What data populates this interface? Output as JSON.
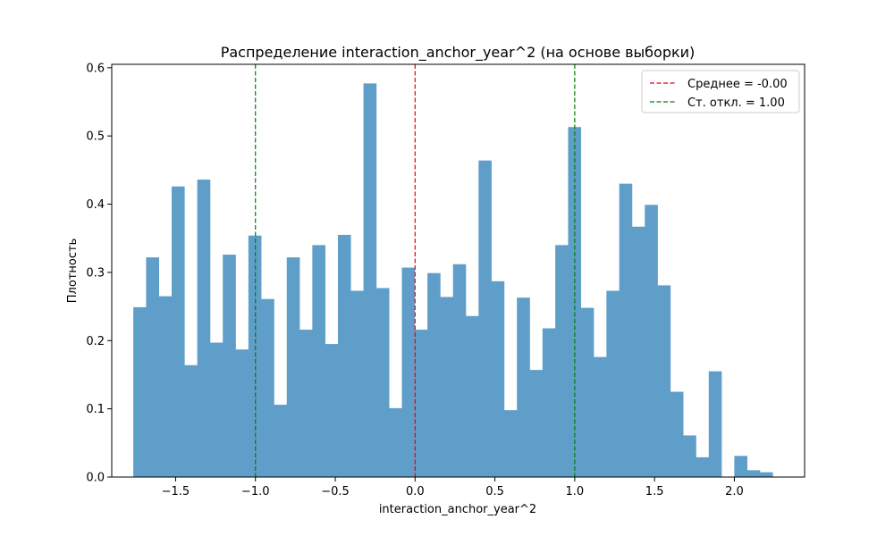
{
  "chart_data": {
    "type": "bar",
    "title": "Распределение interaction_anchor_year^2 (на основе выборки)",
    "xlabel": "interaction_anchor_year^2",
    "ylabel": "Плотность",
    "xlim": [
      -1.9,
      2.44
    ],
    "ylim": [
      0,
      0.605
    ],
    "xticks": [
      -1.5,
      -1.0,
      -0.5,
      0.0,
      0.5,
      1.0,
      1.5,
      2.0
    ],
    "xtick_labels": [
      "−1.5",
      "−1.0",
      "−0.5",
      "0.0",
      "0.5",
      "1.0",
      "1.5",
      "2.0"
    ],
    "yticks": [
      0.0,
      0.1,
      0.2,
      0.3,
      0.4,
      0.5,
      0.6
    ],
    "ytick_labels": [
      "0.0",
      "0.1",
      "0.2",
      "0.3",
      "0.4",
      "0.5",
      "0.6"
    ],
    "bin_start": -1.765,
    "bin_width": 0.0801,
    "values": [
      0.249,
      0.322,
      0.265,
      0.426,
      0.164,
      0.436,
      0.197,
      0.326,
      0.187,
      0.354,
      0.261,
      0.106,
      0.322,
      0.216,
      0.34,
      0.195,
      0.355,
      0.273,
      0.577,
      0.277,
      0.101,
      0.307,
      0.216,
      0.299,
      0.264,
      0.312,
      0.236,
      0.464,
      0.287,
      0.098,
      0.263,
      0.157,
      0.218,
      0.34,
      0.513,
      0.248,
      0.176,
      0.273,
      0.43,
      0.367,
      0.399,
      0.281,
      0.125,
      0.061,
      0.029,
      0.155,
      0.0,
      0.031,
      0.01,
      0.007
    ],
    "bar_color": "#5f9ec9",
    "reference_lines": [
      {
        "x": 0.0,
        "color": "#e8000b",
        "label": "Среднее = -0.00"
      },
      {
        "x": -1.0,
        "color": "#008000",
        "label": "Ст. откл. = 1.00"
      },
      {
        "x": 1.0,
        "color": "#008000",
        "label": ""
      }
    ],
    "legend": {
      "position": "top-right",
      "entries": [
        {
          "label": "Среднее = -0.00",
          "color": "#e8000b"
        },
        {
          "label": "Ст. откл. = 1.00",
          "color": "#008000"
        }
      ]
    },
    "grid": false
  }
}
